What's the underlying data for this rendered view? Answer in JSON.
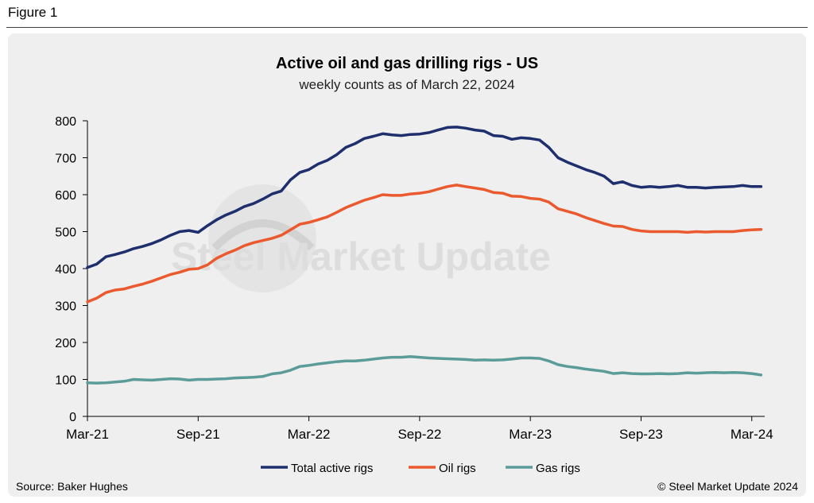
{
  "figure_label": "Figure 1",
  "source": "Source: Baker Hughes",
  "copyright": "© Steel Market Update 2024",
  "watermark": "Steel Market Update",
  "colors": {
    "total": "#1f2f6e",
    "oil": "#ea5a2e",
    "gas": "#5b9c9a",
    "axis": "#000000",
    "panel": "#efefef"
  },
  "chart_data": {
    "type": "line",
    "title": "Active oil and gas drilling rigs - US",
    "subtitle": "weekly counts as of March 22, 2024",
    "xlabel": "",
    "ylabel": "",
    "ylim": [
      0,
      800
    ],
    "yticks": [
      0,
      100,
      200,
      300,
      400,
      500,
      600,
      700,
      800
    ],
    "xlim": [
      0,
      36.7
    ],
    "xticks": [
      {
        "label": "Mar-21",
        "x": 0
      },
      {
        "label": "Sep-21",
        "x": 6
      },
      {
        "label": "Mar-22",
        "x": 12
      },
      {
        "label": "Sep-22",
        "x": 18
      },
      {
        "label": "Mar-23",
        "x": 24
      },
      {
        "label": "Sep-23",
        "x": 30
      },
      {
        "label": "Mar-24",
        "x": 36
      }
    ],
    "x_unit": "months since Mar-21",
    "series": [
      {
        "name": "Total active rigs",
        "key": "total",
        "x": [
          0,
          0.5,
          1,
          1.5,
          2,
          2.5,
          3,
          3.5,
          4,
          4.5,
          5,
          5.5,
          6,
          6.5,
          7,
          7.5,
          8,
          8.5,
          9,
          9.5,
          10,
          10.5,
          11,
          11.5,
          12,
          12.5,
          13,
          13.5,
          14,
          14.5,
          15,
          15.5,
          16,
          16.5,
          17,
          17.5,
          18,
          18.5,
          19,
          19.5,
          20,
          20.5,
          21,
          21.5,
          22,
          22.5,
          23,
          23.5,
          24,
          24.5,
          25,
          25.5,
          26,
          26.5,
          27,
          27.5,
          28,
          28.5,
          29,
          29.5,
          30,
          30.5,
          31,
          31.5,
          32,
          32.5,
          33,
          33.5,
          34,
          34.5,
          35,
          35.5,
          36,
          36.5
        ],
        "values": [
          403,
          412,
          432,
          438,
          445,
          454,
          460,
          468,
          478,
          490,
          500,
          503,
          498,
          516,
          532,
          545,
          555,
          568,
          576,
          588,
          602,
          610,
          640,
          660,
          668,
          683,
          693,
          708,
          728,
          738,
          752,
          758,
          765,
          762,
          760,
          763,
          764,
          768,
          775,
          782,
          783,
          780,
          775,
          772,
          760,
          758,
          750,
          754,
          752,
          748,
          728,
          700,
          688,
          678,
          668,
          660,
          650,
          630,
          635,
          625,
          620,
          622,
          620,
          622,
          625,
          620,
          620,
          618,
          620,
          621,
          622,
          625,
          622,
          622
        ]
      },
      {
        "name": "Oil rigs",
        "key": "oil",
        "x": [
          0,
          0.5,
          1,
          1.5,
          2,
          2.5,
          3,
          3.5,
          4,
          4.5,
          5,
          5.5,
          6,
          6.5,
          7,
          7.5,
          8,
          8.5,
          9,
          9.5,
          10,
          10.5,
          11,
          11.5,
          12,
          12.5,
          13,
          13.5,
          14,
          14.5,
          15,
          15.5,
          16,
          16.5,
          17,
          17.5,
          18,
          18.5,
          19,
          19.5,
          20,
          20.5,
          21,
          21.5,
          22,
          22.5,
          23,
          23.5,
          24,
          24.5,
          25,
          25.5,
          26,
          26.5,
          27,
          27.5,
          28,
          28.5,
          29,
          29.5,
          30,
          30.5,
          31,
          31.5,
          32,
          32.5,
          33,
          33.5,
          34,
          34.5,
          35,
          35.5,
          36,
          36.5
        ],
        "values": [
          310,
          320,
          335,
          342,
          345,
          352,
          358,
          366,
          375,
          384,
          390,
          398,
          400,
          410,
          428,
          440,
          450,
          462,
          470,
          476,
          482,
          490,
          505,
          520,
          525,
          532,
          540,
          552,
          565,
          575,
          585,
          592,
          600,
          598,
          598,
          602,
          604,
          608,
          615,
          622,
          626,
          622,
          618,
          614,
          606,
          604,
          596,
          595,
          590,
          588,
          580,
          562,
          555,
          548,
          538,
          530,
          522,
          515,
          514,
          506,
          502,
          500,
          500,
          500,
          500,
          498,
          500,
          499,
          500,
          500,
          500,
          503,
          505,
          506
        ]
      },
      {
        "name": "Gas rigs",
        "key": "gas",
        "x": [
          0,
          0.5,
          1,
          1.5,
          2,
          2.5,
          3,
          3.5,
          4,
          4.5,
          5,
          5.5,
          6,
          6.5,
          7,
          7.5,
          8,
          8.5,
          9,
          9.5,
          10,
          10.5,
          11,
          11.5,
          12,
          12.5,
          13,
          13.5,
          14,
          14.5,
          15,
          15.5,
          16,
          16.5,
          17,
          17.5,
          18,
          18.5,
          19,
          19.5,
          20,
          20.5,
          21,
          21.5,
          22,
          22.5,
          23,
          23.5,
          24,
          24.5,
          25,
          25.5,
          26,
          26.5,
          27,
          27.5,
          28,
          28.5,
          29,
          29.5,
          30,
          30.5,
          31,
          31.5,
          32,
          32.5,
          33,
          33.5,
          34,
          34.5,
          35,
          35.5,
          36,
          36.5
        ],
        "values": [
          91,
          90,
          91,
          93,
          95,
          100,
          99,
          98,
          100,
          102,
          101,
          98,
          100,
          100,
          101,
          102,
          104,
          105,
          106,
          108,
          115,
          118,
          125,
          135,
          138,
          142,
          145,
          148,
          150,
          150,
          152,
          155,
          158,
          160,
          160,
          162,
          160,
          158,
          157,
          156,
          155,
          154,
          152,
          153,
          152,
          153,
          155,
          158,
          158,
          157,
          150,
          140,
          135,
          132,
          128,
          125,
          122,
          116,
          118,
          116,
          115,
          115,
          116,
          115,
          116,
          118,
          117,
          118,
          119,
          118,
          119,
          118,
          116,
          112
        ]
      }
    ],
    "legend": "bottom-center"
  }
}
